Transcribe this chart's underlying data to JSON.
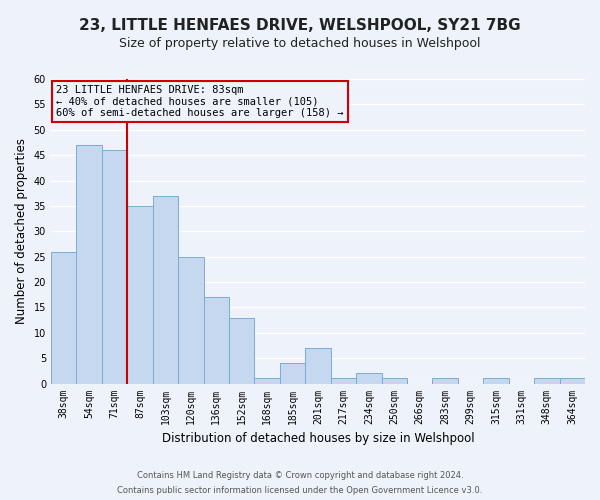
{
  "title": "23, LITTLE HENFAES DRIVE, WELSHPOOL, SY21 7BG",
  "subtitle": "Size of property relative to detached houses in Welshpool",
  "xlabel": "Distribution of detached houses by size in Welshpool",
  "ylabel": "Number of detached properties",
  "bin_labels": [
    "38sqm",
    "54sqm",
    "71sqm",
    "87sqm",
    "103sqm",
    "120sqm",
    "136sqm",
    "152sqm",
    "168sqm",
    "185sqm",
    "201sqm",
    "217sqm",
    "234sqm",
    "250sqm",
    "266sqm",
    "283sqm",
    "299sqm",
    "315sqm",
    "331sqm",
    "348sqm",
    "364sqm"
  ],
  "bar_values": [
    26,
    47,
    46,
    35,
    37,
    25,
    17,
    13,
    1,
    4,
    7,
    1,
    2,
    1,
    0,
    1,
    0,
    1,
    0,
    1,
    1
  ],
  "bar_color": "#c5d8f0",
  "bar_edge_color": "#7aadd4",
  "vline_x_idx": 2,
  "vline_color": "#cc0000",
  "ylim": [
    0,
    60
  ],
  "yticks": [
    0,
    5,
    10,
    15,
    20,
    25,
    30,
    35,
    40,
    45,
    50,
    55,
    60
  ],
  "annotation_title": "23 LITTLE HENFAES DRIVE: 83sqm",
  "annotation_line1": "← 40% of detached houses are smaller (105)",
  "annotation_line2": "60% of semi-detached houses are larger (158) →",
  "footnote1": "Contains HM Land Registry data © Crown copyright and database right 2024.",
  "footnote2": "Contains public sector information licensed under the Open Government Licence v3.0.",
  "background_color": "#eef2fa",
  "grid_color": "#ffffff",
  "title_fontsize": 11,
  "subtitle_fontsize": 9,
  "axis_label_fontsize": 8.5,
  "tick_fontsize": 7,
  "annotation_fontsize": 7.5,
  "footnote_fontsize": 6
}
